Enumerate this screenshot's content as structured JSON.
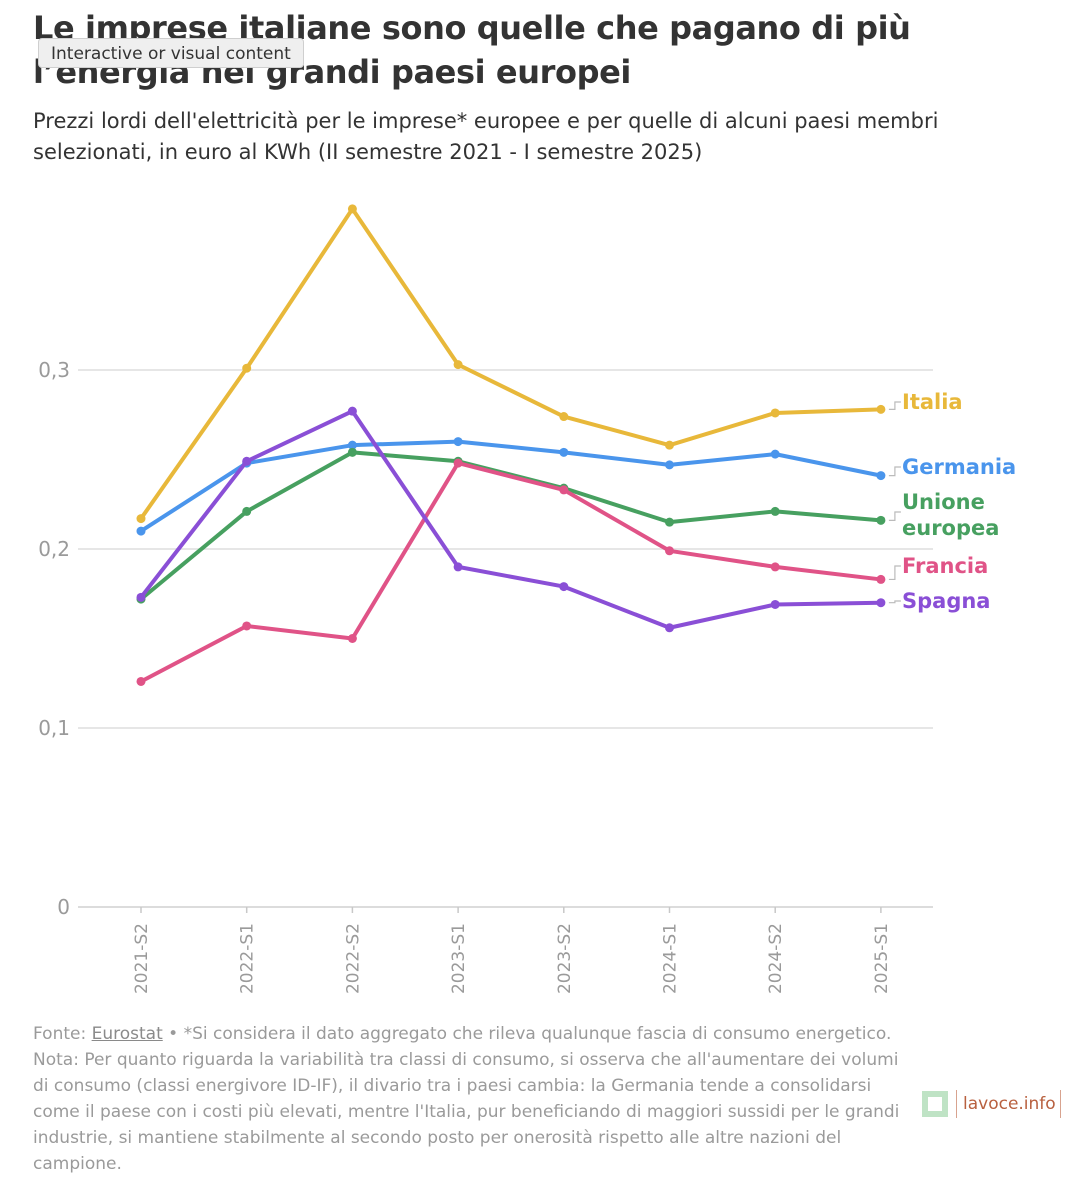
{
  "header": {
    "title": "Le imprese italiane sono quelle che pagano di più l’energia nei grandi paesi europei",
    "tooltip": "Interactive or visual content",
    "subtitle": "Prezzi lordi dell'elettricità per le imprese* europee e per quelle di alcuni paesi membri selezionati, in euro al KWh (II semestre 2021 - I semestre 2025)"
  },
  "chart_data": {
    "type": "line",
    "categories": [
      "2021-S2",
      "2022-S1",
      "2022-S2",
      "2023-S1",
      "2023-S2",
      "2024-S1",
      "2024-S2",
      "2025-S1"
    ],
    "ylim": [
      0,
      0.4
    ],
    "yticks": [
      0,
      0.1,
      0.2,
      0.3
    ],
    "ytick_labels": [
      "0",
      "0,1",
      "0,2",
      "0,3"
    ],
    "grid": true,
    "legend": "direct labels at right end of lines",
    "series": [
      {
        "name": "Italia",
        "label_lines": [
          "Italia"
        ],
        "color": "#e8b83a",
        "values": [
          0.217,
          0.301,
          0.39,
          0.303,
          0.274,
          0.258,
          0.276,
          0.278
        ]
      },
      {
        "name": "Germania",
        "label_lines": [
          "Germania"
        ],
        "color": "#4a95ec",
        "values": [
          0.21,
          0.248,
          0.258,
          0.26,
          0.254,
          0.247,
          0.253,
          0.241
        ]
      },
      {
        "name": "Unione europea",
        "label_lines": [
          "Unione",
          "europea"
        ],
        "color": "#47a060",
        "values": [
          0.172,
          0.221,
          0.254,
          0.249,
          0.234,
          0.215,
          0.221,
          0.216
        ]
      },
      {
        "name": "Francia",
        "label_lines": [
          "Francia"
        ],
        "color": "#e05387",
        "values": [
          0.126,
          0.157,
          0.15,
          0.248,
          0.233,
          0.199,
          0.19,
          0.183
        ]
      },
      {
        "name": "Spagna",
        "label_lines": [
          "Spagna"
        ],
        "color": "#8a4fd6",
        "values": [
          0.173,
          0.249,
          0.277,
          0.19,
          0.179,
          0.156,
          0.169,
          0.17
        ]
      }
    ]
  },
  "footer": {
    "source_prefix": "Fonte: ",
    "source_link": "Eurostat",
    "source_note": " • *Si considera il dato aggregato che rileva qualunque fascia di consumo energetico.",
    "note": "Nota: Per quanto riguarda la variabilità tra classi di consumo, si osserva che all'aumentare dei volumi di consumo (classi energivore ID-IF), il divario tra i paesi cambia: la Germania tende a consolidarsi come il paese con i costi più elevati, mentre l'Italia, pur beneficiando di maggiori sussidi per le grandi industrie, si mantiene stabilmente al secondo posto per onerosità rispetto alle altre nazioni del campione."
  },
  "logo": {
    "text": "lavoce.info"
  }
}
